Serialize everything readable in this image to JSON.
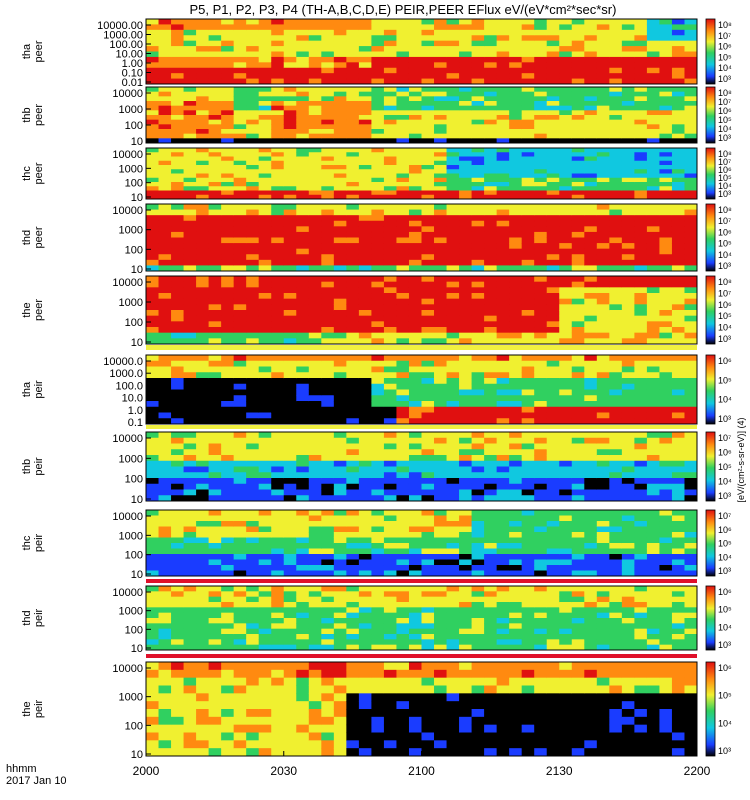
{
  "title": "P5, P1, P2, P3, P4 (TH-A,B,C,D,E) PEIR,PEER EFlux eV/(eV*cm²*sec*sr)",
  "colorbar_label": "[eV/(cm²-s-sr-eV)] (4)",
  "time_axis": {
    "label_line1": "hhmm",
    "label_line2": "2017 Jan 10",
    "ticks": [
      "2000",
      "2030",
      "2100",
      "2130",
      "2200"
    ]
  },
  "colors": {
    "black": "#000000",
    "blue": "#1a3cff",
    "cyan": "#10c8e0",
    "green": "#30d060",
    "yellow": "#f0f030",
    "orange": "#ff8a10",
    "red": "#e01010",
    "flag_red": "#e0102a",
    "flag_yellow": "#f0f040"
  },
  "chart_data": [
    {
      "type": "heatmap",
      "probe": "tha",
      "species": "peer",
      "ylabel": "tha\npeer",
      "ylim": [
        0.01,
        30000
      ],
      "yscale": "log",
      "yticks": [
        "10000.00",
        "1000.00",
        "100.00",
        "10.00",
        "1.00",
        "0.10",
        "0.01"
      ],
      "colorbar_ticks": [
        "10⁸",
        "10⁷",
        "10⁶",
        "10⁵",
        "10⁴",
        "10³"
      ],
      "x": [
        "2000",
        "2030",
        "2100",
        "2130",
        "2200"
      ]
    },
    {
      "type": "heatmap",
      "probe": "thb",
      "species": "peer",
      "ylabel": "thb\npeer",
      "ylim": [
        10,
        20000
      ],
      "yscale": "log",
      "yticks": [
        "10000",
        "1000",
        "100",
        "10"
      ],
      "colorbar_ticks": [
        "10⁸",
        "10⁷",
        "10⁶",
        "10⁵",
        "10⁴",
        "10³"
      ]
    },
    {
      "type": "heatmap",
      "probe": "thc",
      "species": "peer",
      "ylabel": "thc\npeer",
      "ylim": [
        10,
        20000
      ],
      "yscale": "log",
      "yticks": [
        "10000",
        "1000",
        "100",
        "10"
      ],
      "colorbar_ticks": [
        "10⁸",
        "10⁷",
        "10⁶",
        "10⁵",
        "10⁴",
        "10³"
      ]
    },
    {
      "type": "heatmap",
      "probe": "thd",
      "species": "peer",
      "ylabel": "thd\npeer",
      "ylim": [
        10,
        20000
      ],
      "yscale": "log",
      "yticks": [
        "10000",
        "1000",
        "100",
        "10"
      ],
      "colorbar_ticks": [
        "10⁸",
        "10⁷",
        "10⁶",
        "10⁵",
        "10⁴",
        "10³"
      ]
    },
    {
      "type": "heatmap",
      "probe": "the",
      "species": "peer",
      "ylabel": "the\npeer",
      "ylim": [
        5,
        20000
      ],
      "yscale": "log",
      "yticks": [
        "10000",
        "1000",
        "100",
        "10"
      ],
      "colorbar_ticks": [
        "10⁸",
        "10⁷",
        "10⁶",
        "10⁵",
        "10⁴",
        "10³"
      ]
    },
    {
      "type": "heatmap",
      "probe": "tha",
      "species": "peir",
      "ylabel": "tha\npeir",
      "ylim": [
        0.1,
        20000
      ],
      "yscale": "log",
      "yticks": [
        "10000.0",
        "1000.0",
        "100.0",
        "10.0",
        "1.0",
        "0.1"
      ],
      "colorbar_ticks": [
        "10⁶",
        "10⁵",
        "10⁴",
        "10³"
      ]
    },
    {
      "type": "heatmap",
      "probe": "thb",
      "species": "peir",
      "ylabel": "thb\npeir",
      "ylim": [
        10,
        20000
      ],
      "yscale": "log",
      "yticks": [
        "10000",
        "1000",
        "100",
        "10"
      ],
      "colorbar_ticks": [
        "10⁷",
        "10⁶",
        "10⁵",
        "10⁴",
        "10³"
      ]
    },
    {
      "type": "heatmap",
      "probe": "thc",
      "species": "peir",
      "ylabel": "thc\npeir",
      "ylim": [
        10,
        20000
      ],
      "yscale": "log",
      "yticks": [
        "10000",
        "1000",
        "100",
        "10"
      ],
      "colorbar_ticks": [
        "10⁷",
        "10⁶",
        "10⁵",
        "10⁴",
        "10³"
      ]
    },
    {
      "type": "heatmap",
      "probe": "thd",
      "species": "peir",
      "ylabel": "thd\npeir",
      "ylim": [
        10,
        20000
      ],
      "yscale": "log",
      "yticks": [
        "10000",
        "1000",
        "100",
        "10"
      ],
      "colorbar_ticks": [
        "10⁶",
        "10⁵",
        "10⁴",
        "10³"
      ]
    },
    {
      "type": "heatmap",
      "probe": "the",
      "species": "peir",
      "ylabel": "the\npeir",
      "ylim": [
        5,
        20000
      ],
      "yscale": "log",
      "yticks": [
        "10000",
        "1000",
        "100",
        "10"
      ],
      "colorbar_ticks": [
        "10⁶",
        "10⁵",
        "10⁴",
        "10³"
      ]
    }
  ]
}
